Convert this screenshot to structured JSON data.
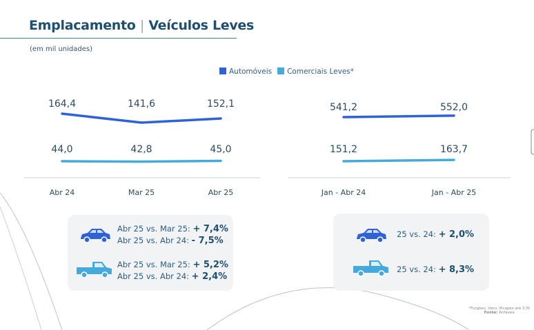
{
  "title": {
    "main": "Emplacamento",
    "separator": "|",
    "secondary": "Veículos Leves"
  },
  "subtitle": "(em mil unidades)",
  "legend": [
    {
      "label": "Automóveis",
      "color": "#2f62d6"
    },
    {
      "label": "Comerciais Leves*",
      "color": "#45a9dc"
    }
  ],
  "chart_data": [
    {
      "type": "line",
      "categories": [
        "Abr 24",
        "Mar 25",
        "Abr 25"
      ],
      "series": [
        {
          "name": "Automóveis",
          "values": [
            164.4,
            141.6,
            152.1
          ],
          "labels": [
            "164,4",
            "141,6",
            "152,1"
          ]
        },
        {
          "name": "Comerciais Leves*",
          "values": [
            44.0,
            42.8,
            45.0
          ],
          "labels": [
            "44,0",
            "42,8",
            "45,0"
          ]
        }
      ]
    },
    {
      "type": "line",
      "categories": [
        "Jan - Abr 24",
        "Jan - Abr 25"
      ],
      "series": [
        {
          "name": "Automóveis",
          "values": [
            541.2,
            552.0
          ],
          "labels": [
            "541,2",
            "552,0"
          ]
        },
        {
          "name": "Comerciais Leves*",
          "values": [
            151.2,
            163.7
          ],
          "labels": [
            "151,2",
            "163,7"
          ]
        }
      ]
    }
  ],
  "comparisons_monthly": {
    "car": [
      {
        "text": "Abr 25 vs. Mar 25:",
        "value": "+ 7,4%"
      },
      {
        "text": "Abr 25 vs. Abr 24:",
        "value": "- 7,5%"
      }
    ],
    "pickup": [
      {
        "text": "Abr 25 vs. Mar 25:",
        "value": "+ 5,2%"
      },
      {
        "text": "Abr 25 vs. Abr 24:",
        "value": "+ 2,4%"
      }
    ]
  },
  "comparisons_ytd": {
    "car": {
      "text": "25 vs. 24:",
      "value": "+ 2,0%"
    },
    "pickup": {
      "text": "25 vs. 24:",
      "value": "+ 8,3%"
    }
  },
  "footnote": {
    "note": "*Furgões, Vans, Picapes até 3,5t",
    "source_label": "Fonte:",
    "source": "Anfavea"
  }
}
